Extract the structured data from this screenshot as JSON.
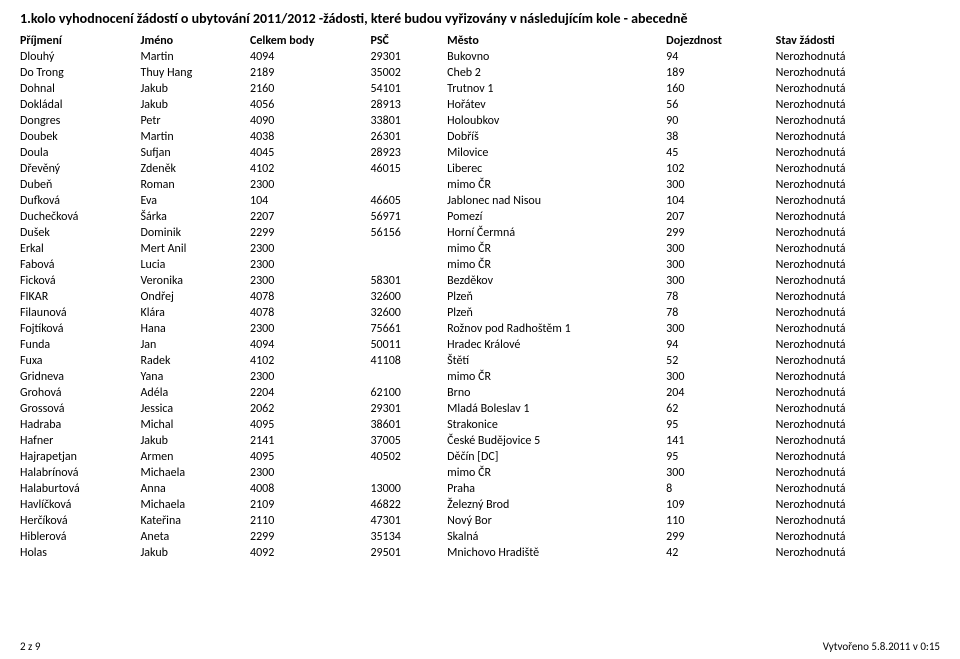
{
  "title": "1.kolo vyhodnocení žádostí o ubytování 2011/2012 -žádosti, které budou vyřizovány v následujícím kole - abecedně",
  "columns": [
    "Příjmení",
    "Jméno",
    "Celkem body",
    "PSČ",
    "Město",
    "Dojezdnost",
    "Stav žádosti"
  ],
  "rows": [
    [
      "Dlouhý",
      "Martin",
      "4094",
      "29301",
      "Bukovno",
      "94",
      "Nerozhodnutá"
    ],
    [
      "Do Trong",
      "Thuy Hang",
      "2189",
      "35002",
      "Cheb 2",
      "189",
      "Nerozhodnutá"
    ],
    [
      "Dohnal",
      "Jakub",
      "2160",
      "54101",
      "Trutnov 1",
      "160",
      "Nerozhodnutá"
    ],
    [
      "Dokládal",
      "Jakub",
      "4056",
      "28913",
      "Hořátev",
      "56",
      "Nerozhodnutá"
    ],
    [
      "Dongres",
      "Petr",
      "4090",
      "33801",
      "Holoubkov",
      "90",
      "Nerozhodnutá"
    ],
    [
      "Doubek",
      "Martin",
      "4038",
      "26301",
      "Dobříš",
      "38",
      "Nerozhodnutá"
    ],
    [
      "Doula",
      "Sufjan",
      "4045",
      "28923",
      "Milovice",
      "45",
      "Nerozhodnutá"
    ],
    [
      "Dřevěný",
      "Zdeněk",
      "4102",
      "46015",
      "Liberec",
      "102",
      "Nerozhodnutá"
    ],
    [
      "Dubeň",
      "Roman",
      "2300",
      "",
      "mimo ČR",
      "300",
      "Nerozhodnutá"
    ],
    [
      "Dufková",
      "Eva",
      "104",
      "46605",
      "Jablonec nad Nisou",
      "104",
      "Nerozhodnutá"
    ],
    [
      "Duchečková",
      "Šárka",
      "2207",
      "56971",
      "Pomezí",
      "207",
      "Nerozhodnutá"
    ],
    [
      "Dušek",
      "Dominik",
      "2299",
      "56156",
      "Horní Čermná",
      "299",
      "Nerozhodnutá"
    ],
    [
      "Erkal",
      "Mert Anil",
      "2300",
      "",
      "mimo ČR",
      "300",
      "Nerozhodnutá"
    ],
    [
      "Fabová",
      "Lucia",
      "2300",
      "",
      "mimo ČR",
      "300",
      "Nerozhodnutá"
    ],
    [
      "Ficková",
      "Veronika",
      "2300",
      "58301",
      "Bezděkov",
      "300",
      "Nerozhodnutá"
    ],
    [
      "FIKAR",
      "Ondřej",
      "4078",
      "32600",
      "Plzeň",
      "78",
      "Nerozhodnutá"
    ],
    [
      "Filaunová",
      "Klára",
      "4078",
      "32600",
      "Plzeň",
      "78",
      "Nerozhodnutá"
    ],
    [
      "Fojtíková",
      "Hana",
      "2300",
      "75661",
      "Rožnov pod Radhoštěm 1",
      "300",
      "Nerozhodnutá"
    ],
    [
      "Funda",
      "Jan",
      "4094",
      "50011",
      "Hradec Králové",
      "94",
      "Nerozhodnutá"
    ],
    [
      "Fuxa",
      "Radek",
      "4102",
      "41108",
      "Štětí",
      "52",
      "Nerozhodnutá"
    ],
    [
      "Gridneva",
      "Yana",
      "2300",
      "",
      "mimo ČR",
      "300",
      "Nerozhodnutá"
    ],
    [
      "Grohová",
      "Adéla",
      "2204",
      "62100",
      "Brno",
      "204",
      "Nerozhodnutá"
    ],
    [
      "Grossová",
      "Jessica",
      "2062",
      "29301",
      "Mladá Boleslav 1",
      "62",
      "Nerozhodnutá"
    ],
    [
      "Hadraba",
      "Michal",
      "4095",
      "38601",
      "Strakonice",
      "95",
      "Nerozhodnutá"
    ],
    [
      "Hafner",
      "Jakub",
      "2141",
      "37005",
      "České Budějovice 5",
      "141",
      "Nerozhodnutá"
    ],
    [
      "Hajrapetjan",
      "Armen",
      "4095",
      "40502",
      "Děčín [DC]",
      "95",
      "Nerozhodnutá"
    ],
    [
      "Halabrínová",
      "Michaela",
      "2300",
      "",
      "mimo ČR",
      "300",
      "Nerozhodnutá"
    ],
    [
      "Halaburtová",
      "Anna",
      "4008",
      "13000",
      "Praha",
      "8",
      "Nerozhodnutá"
    ],
    [
      "Havlíčková",
      "Michaela",
      "2109",
      "46822",
      "Železný Brod",
      "109",
      "Nerozhodnutá"
    ],
    [
      "Herčíková",
      "Kateřina",
      "2110",
      "47301",
      "Nový Bor",
      "110",
      "Nerozhodnutá"
    ],
    [
      "Hiblerová",
      "Aneta",
      "2299",
      "35134",
      "Skalná",
      "299",
      "Nerozhodnutá"
    ],
    [
      "Holas",
      "Jakub",
      "4092",
      "29501",
      "Mnichovo Hradiště",
      "42",
      "Nerozhodnutá"
    ]
  ],
  "footer_left": "2 z 9",
  "footer_right": "Vytvořeno 5.8.2011 v 0:15"
}
